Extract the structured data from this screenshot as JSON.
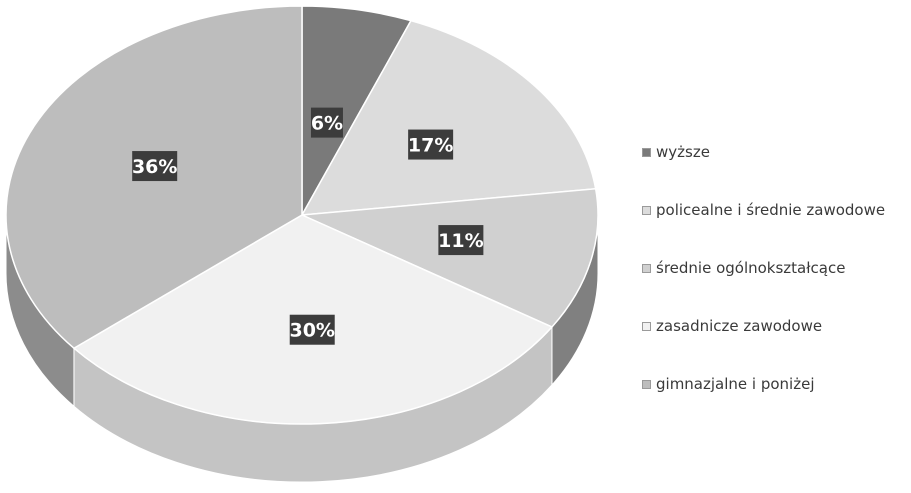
{
  "chart_data": {
    "type": "pie",
    "title": "",
    "slices": [
      {
        "label": "wyższe",
        "value": 6,
        "data_label": "6%",
        "color": "#7a7a7a",
        "side_color": "#5a5a5a"
      },
      {
        "label": "policealne i średnie zawodowe",
        "value": 17,
        "data_label": "17%",
        "color": "#dcdcdc",
        "side_color": "#a8a8a8"
      },
      {
        "label": "średnie ogólnokształcące",
        "value": 11,
        "data_label": "11%",
        "color": "#d0d0d0",
        "side_color": "#808080"
      },
      {
        "label": "zasadnicze zawodowe",
        "value": 30,
        "data_label": "30%",
        "color": "#f1f1f1",
        "side_color": "#c4c4c4"
      },
      {
        "label": "gimnazjalne i poniżej",
        "value": 36,
        "data_label": "36%",
        "color": "#bdbdbd",
        "side_color": "#8c8c8c"
      }
    ],
    "legend_position": "right",
    "data_label_background": "#3c3c3c",
    "data_label_color": "#ffffff"
  }
}
